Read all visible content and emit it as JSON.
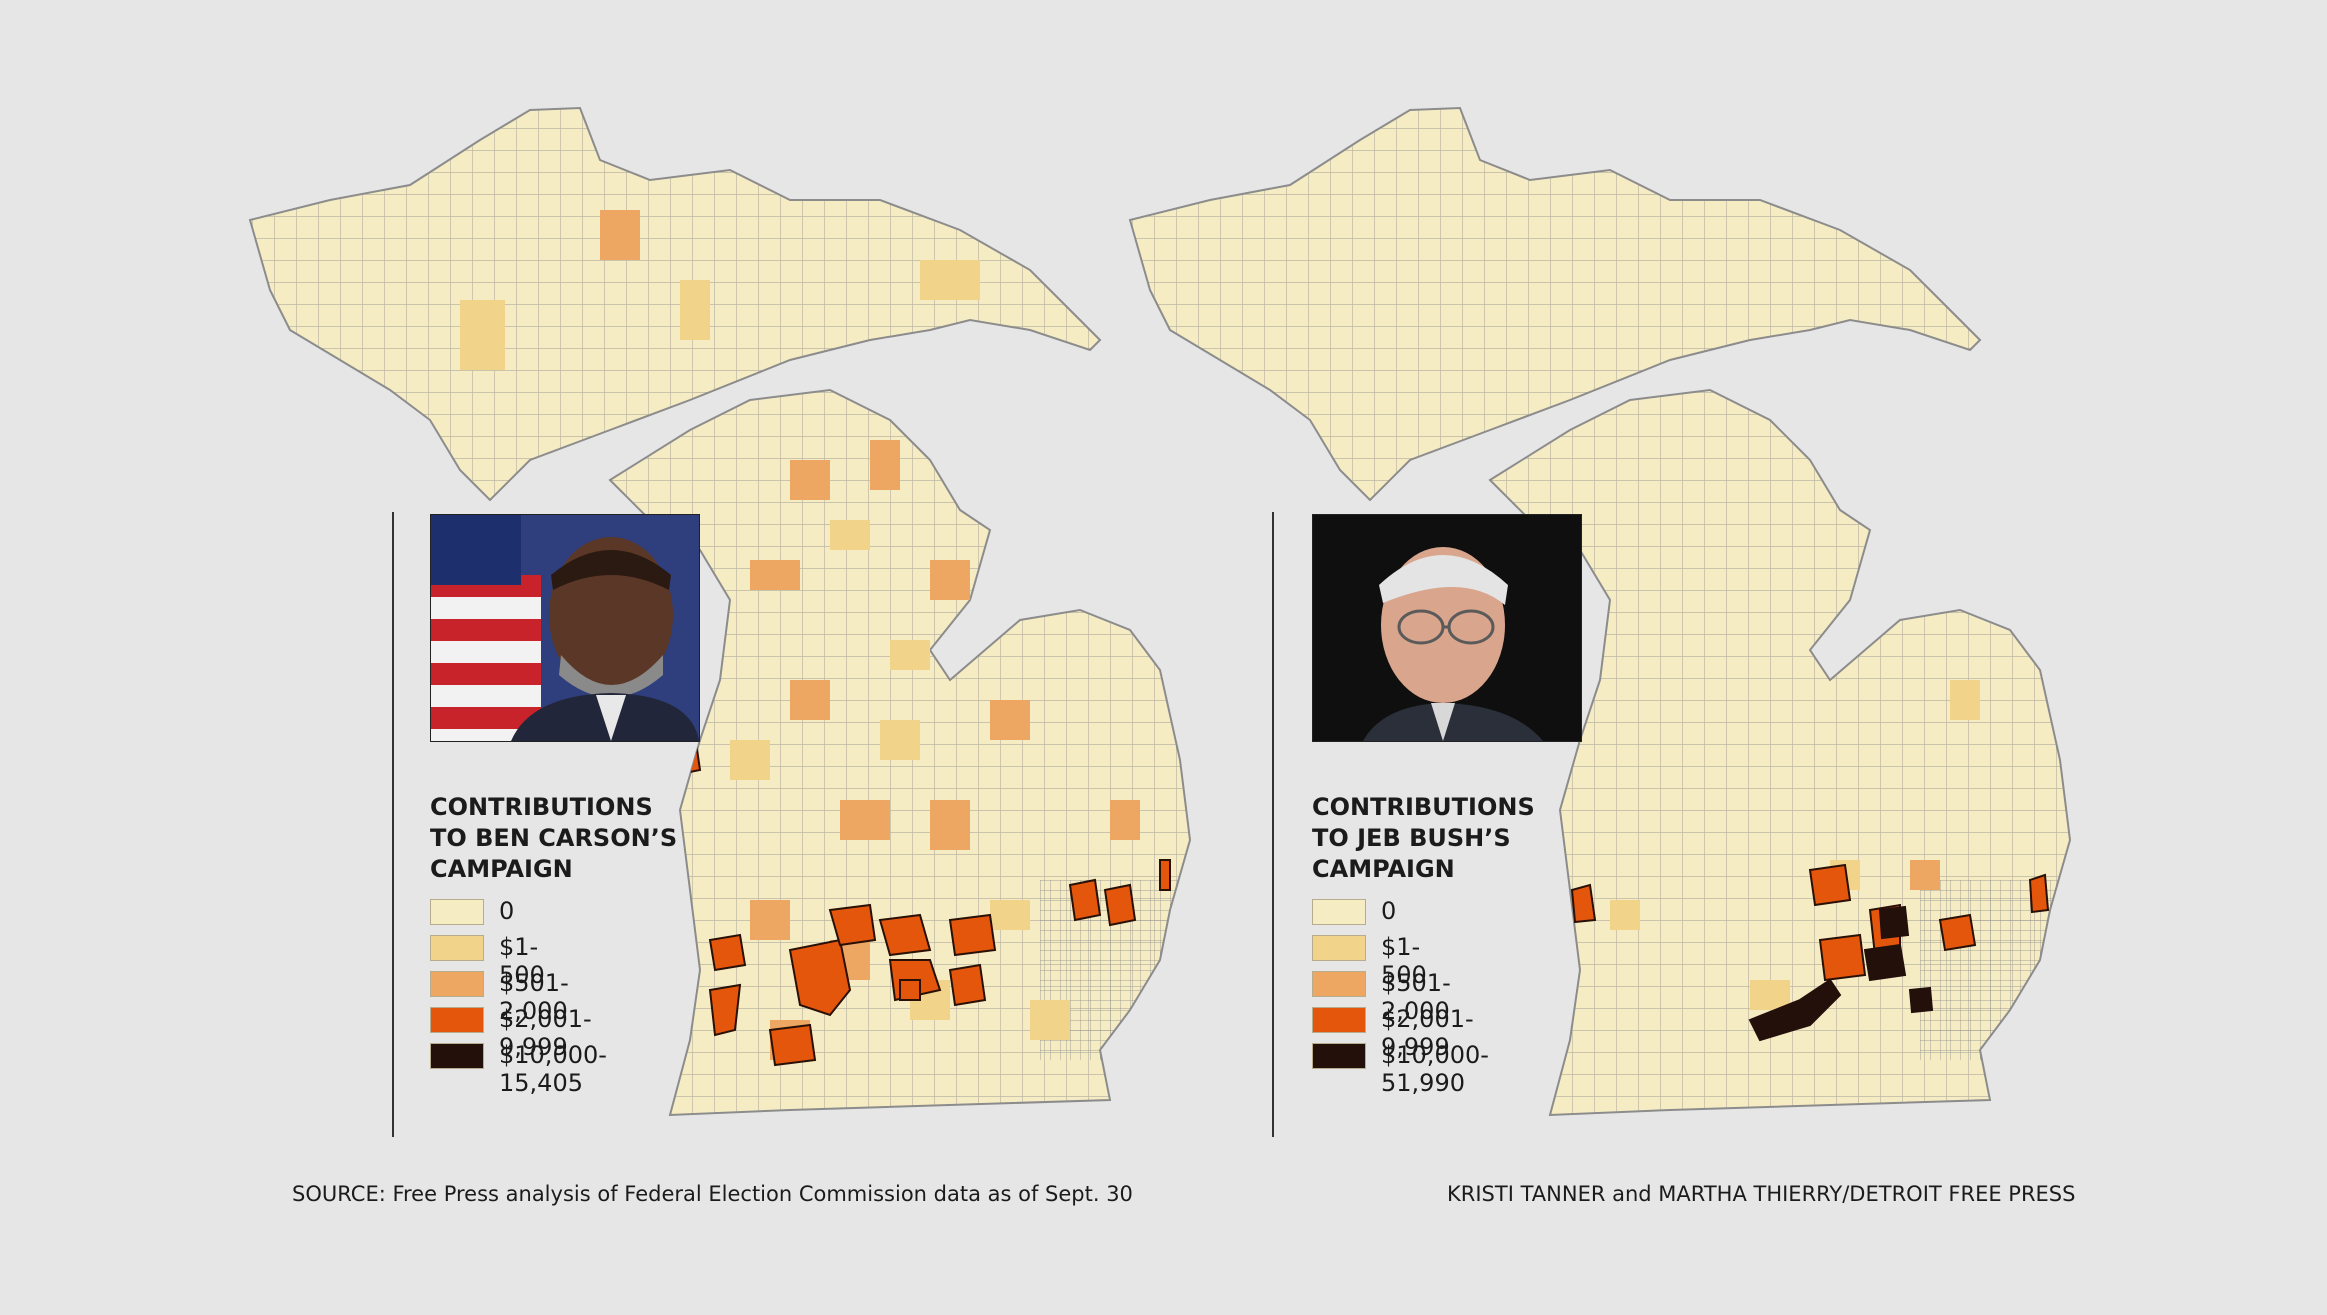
{
  "colors": {
    "background": "#e6e6e6",
    "outline": "#8c8c8c",
    "land": "#f6ecc3"
  },
  "legend_bins": [
    {
      "key": "zero",
      "color": "#f6ecc3"
    },
    {
      "key": "low",
      "color": "#f2d38a"
    },
    {
      "key": "mid",
      "color": "#eda763"
    },
    {
      "key": "high",
      "color": "#e4560c"
    },
    {
      "key": "top",
      "color": "#23100a"
    }
  ],
  "panels": [
    {
      "name": "carson",
      "photo_icon": "ben-carson-portrait",
      "legend_title": "CONTRIBUTIONS\nTO BEN CARSON’S\nCAMPAIGN",
      "legend_labels": [
        "0",
        "$1-500",
        "$501-2,000",
        "$2,001-9,999",
        "$10,000-15,405"
      ]
    },
    {
      "name": "bush",
      "photo_icon": "jeb-bush-portrait",
      "legend_title": "CONTRIBUTIONS\nTO JEB BUSH’S\nCAMPAIGN",
      "legend_labels": [
        "0",
        "$1-500",
        "$501-2,000",
        "$2,001-9,999",
        "$10,000-51,990"
      ]
    }
  ],
  "footer": {
    "source": "SOURCE: Free Press analysis of Federal Election Commission data as of Sept. 30",
    "credit": "KRISTI TANNER and MARTHA THIERRY/DETROIT FREE PRESS"
  }
}
